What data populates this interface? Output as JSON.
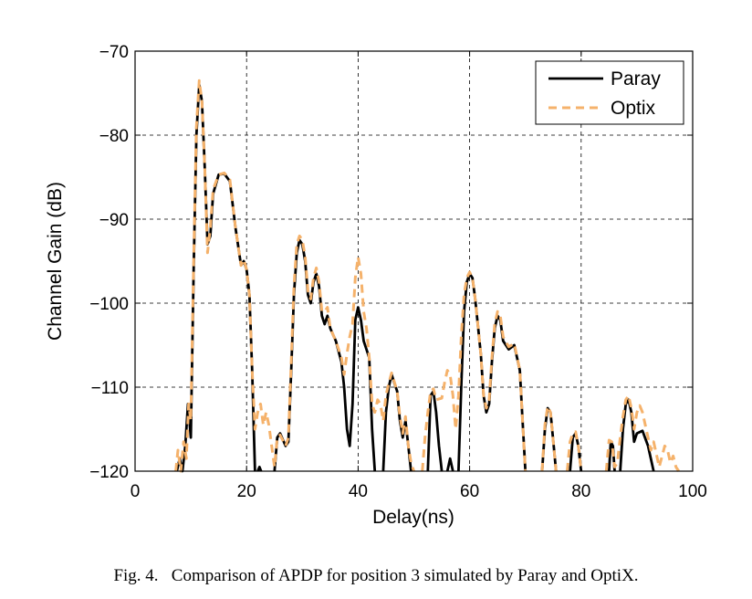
{
  "chart_data": {
    "type": "line",
    "xlabel": "Delay(ns)",
    "ylabel": "Channel Gain (dB)",
    "xlim": [
      0,
      100
    ],
    "ylim": [
      -120,
      -70
    ],
    "xticks": [
      0,
      20,
      40,
      60,
      80,
      100
    ],
    "yticks": [
      -120,
      -110,
      -100,
      -90,
      -80,
      -70
    ],
    "xtick_labels": [
      "0",
      "20",
      "40",
      "60",
      "80",
      "100"
    ],
    "ytick_labels": [
      "−120",
      "−110",
      "−100",
      "−90",
      "−80",
      "−70"
    ],
    "grid": true,
    "legend_position": "top-right",
    "series": [
      {
        "name": "Paray",
        "color": "#000000",
        "style": "solid",
        "segments": [
          [
            [
              7.5,
              -120
            ],
            [
              8,
              -118.5
            ],
            [
              8.5,
              -120
            ],
            [
              9,
              -117
            ],
            [
              9.5,
              -112
            ],
            [
              10,
              -116
            ],
            [
              10.5,
              -96
            ],
            [
              11,
              -80
            ],
            [
              11.5,
              -74
            ],
            [
              12,
              -76
            ],
            [
              12.5,
              -84
            ],
            [
              13,
              -93
            ],
            [
              13.5,
              -92
            ],
            [
              14,
              -87
            ],
            [
              15,
              -84.7
            ],
            [
              16,
              -84.6
            ],
            [
              17,
              -85.5
            ],
            [
              18,
              -91
            ],
            [
              19,
              -95.5
            ],
            [
              19.5,
              -95
            ],
            [
              20,
              -96
            ],
            [
              20.5,
              -99
            ],
            [
              21,
              -108
            ],
            [
              21.5,
              -120
            ]
          ],
          [
            [
              22,
              -120
            ],
            [
              22.3,
              -119.5
            ],
            [
              22.6,
              -120
            ]
          ],
          [
            [
              25,
              -120
            ],
            [
              25.5,
              -116
            ],
            [
              26,
              -115.5
            ],
            [
              27,
              -117
            ],
            [
              27.5,
              -116.5
            ],
            [
              28,
              -108
            ],
            [
              28.5,
              -99
            ],
            [
              29,
              -94
            ],
            [
              29.5,
              -92.5
            ],
            [
              30,
              -93
            ],
            [
              30.5,
              -95
            ],
            [
              31,
              -99
            ],
            [
              31.5,
              -100
            ],
            [
              32,
              -97.5
            ],
            [
              32.5,
              -96.5
            ],
            [
              33,
              -98
            ],
            [
              33.5,
              -101.5
            ],
            [
              34,
              -102.5
            ],
            [
              34.5,
              -101.5
            ],
            [
              35,
              -103
            ],
            [
              36,
              -104.5
            ],
            [
              37,
              -107
            ],
            [
              37.5,
              -110
            ],
            [
              38,
              -115
            ],
            [
              38.5,
              -117
            ],
            [
              39,
              -112
            ],
            [
              39.5,
              -102
            ],
            [
              40,
              -100.5
            ],
            [
              40.5,
              -102
            ],
            [
              41,
              -104.5
            ],
            [
              42,
              -106.5
            ],
            [
              42.5,
              -115
            ],
            [
              43,
              -120
            ]
          ],
          [
            [
              44.5,
              -120
            ],
            [
              45,
              -113
            ],
            [
              45.5,
              -110
            ],
            [
              46,
              -108.5
            ],
            [
              47,
              -110.5
            ],
            [
              47.5,
              -114
            ],
            [
              48,
              -116
            ],
            [
              48.5,
              -114
            ],
            [
              49,
              -117
            ],
            [
              49.5,
              -120
            ]
          ],
          [
            [
              52.5,
              -120
            ],
            [
              53,
              -111
            ],
            [
              53.5,
              -110.5
            ],
            [
              54,
              -113
            ],
            [
              54.5,
              -117
            ],
            [
              55,
              -120
            ]
          ],
          [
            [
              56,
              -120
            ],
            [
              56.5,
              -118.5
            ],
            [
              57,
              -120
            ]
          ],
          [
            [
              58,
              -120
            ],
            [
              58.5,
              -110
            ],
            [
              59,
              -101
            ],
            [
              59.5,
              -97.5
            ],
            [
              60,
              -96.5
            ],
            [
              60.5,
              -97
            ],
            [
              61,
              -99.5
            ],
            [
              62,
              -106
            ],
            [
              62.5,
              -111
            ],
            [
              63,
              -113
            ],
            [
              63.5,
              -112
            ],
            [
              64,
              -107
            ],
            [
              64.5,
              -103
            ],
            [
              65,
              -101.5
            ],
            [
              65.5,
              -102
            ],
            [
              66,
              -104.5
            ],
            [
              67,
              -105.5
            ],
            [
              68,
              -105
            ],
            [
              69,
              -108
            ],
            [
              69.5,
              -114
            ],
            [
              70,
              -120
            ]
          ],
          [
            [
              73,
              -120
            ],
            [
              73.5,
              -115
            ],
            [
              74,
              -112.5
            ],
            [
              74.5,
              -113
            ],
            [
              75,
              -116.5
            ],
            [
              75.5,
              -120
            ]
          ],
          [
            [
              78,
              -120
            ],
            [
              78.5,
              -116
            ],
            [
              79,
              -115.5
            ],
            [
              79.5,
              -117
            ],
            [
              80,
              -120
            ]
          ],
          [
            [
              85,
              -120
            ],
            [
              85.3,
              -116.5
            ],
            [
              85.7,
              -117
            ],
            [
              86,
              -120
            ]
          ],
          [
            [
              87,
              -120
            ],
            [
              87.5,
              -115
            ],
            [
              88,
              -112
            ],
            [
              88.5,
              -111.5
            ],
            [
              89,
              -113
            ],
            [
              89.5,
              -116.5
            ],
            [
              90,
              -115.5
            ],
            [
              91,
              -115.2
            ],
            [
              92,
              -117
            ],
            [
              93,
              -120
            ]
          ]
        ]
      },
      {
        "name": "Optix",
        "color": "#f5b26b",
        "style": "dashed",
        "segments": [
          [
            [
              7.3,
              -120
            ],
            [
              7.7,
              -117.5
            ],
            [
              8.2,
              -120
            ],
            [
              8.7,
              -116.5
            ],
            [
              9.2,
              -118.5
            ],
            [
              9.6,
              -112
            ],
            [
              10,
              -114
            ],
            [
              10.5,
              -95
            ],
            [
              11,
              -79
            ],
            [
              11.5,
              -73.5
            ],
            [
              12,
              -76
            ],
            [
              12.5,
              -84
            ],
            [
              13,
              -94
            ],
            [
              13.5,
              -91
            ],
            [
              14,
              -86.5
            ],
            [
              15,
              -84.7
            ],
            [
              16,
              -84.5
            ],
            [
              17,
              -85.3
            ],
            [
              18,
              -91
            ],
            [
              19,
              -95.5
            ],
            [
              19.5,
              -94.8
            ],
            [
              20,
              -96
            ],
            [
              20.5,
              -99
            ],
            [
              21,
              -108
            ],
            [
              21.5,
              -115
            ],
            [
              22,
              -113
            ],
            [
              22.5,
              -112
            ],
            [
              23,
              -114.5
            ],
            [
              23.5,
              -113
            ],
            [
              24,
              -114.5
            ],
            [
              24.5,
              -117
            ],
            [
              25,
              -119.5
            ],
            [
              25.5,
              -116
            ],
            [
              26,
              -115.7
            ],
            [
              27,
              -117
            ],
            [
              27.5,
              -116
            ],
            [
              28,
              -107
            ],
            [
              28.5,
              -98
            ],
            [
              29,
              -93
            ],
            [
              29.5,
              -92
            ],
            [
              30,
              -92.5
            ],
            [
              30.5,
              -94.5
            ],
            [
              31,
              -98.5
            ],
            [
              31.5,
              -99.5
            ],
            [
              32,
              -97
            ],
            [
              32.5,
              -95.8
            ],
            [
              33,
              -97.5
            ],
            [
              33.5,
              -101
            ],
            [
              34,
              -101
            ],
            [
              34.5,
              -100.5
            ],
            [
              35,
              -103
            ],
            [
              36,
              -104.5
            ],
            [
              37,
              -106.5
            ],
            [
              37.5,
              -108.5
            ],
            [
              38,
              -106
            ],
            [
              38.5,
              -104
            ],
            [
              39,
              -102.5
            ],
            [
              39.5,
              -97
            ],
            [
              40,
              -94.5
            ],
            [
              40.5,
              -96.5
            ],
            [
              41,
              -101
            ],
            [
              41.5,
              -103
            ],
            [
              42,
              -106.5
            ],
            [
              42.5,
              -112
            ],
            [
              43,
              -113
            ],
            [
              43.5,
              -111.5
            ],
            [
              44,
              -112
            ],
            [
              44.5,
              -114
            ],
            [
              45,
              -111
            ],
            [
              45.5,
              -109.5
            ],
            [
              46,
              -108.3
            ],
            [
              47,
              -110.5
            ],
            [
              47.5,
              -113.5
            ],
            [
              48,
              -115.5
            ],
            [
              48.5,
              -113.5
            ],
            [
              49,
              -117
            ],
            [
              49.5,
              -119
            ],
            [
              50,
              -120
            ]
          ],
          [
            [
              51.5,
              -120
            ],
            [
              52,
              -116
            ],
            [
              52.5,
              -113
            ],
            [
              53,
              -110.5
            ],
            [
              53.5,
              -110.2
            ],
            [
              54,
              -111.5
            ],
            [
              55,
              -111.3
            ],
            [
              55.5,
              -109.5
            ],
            [
              56,
              -108
            ],
            [
              56.5,
              -108.5
            ],
            [
              57,
              -111
            ],
            [
              57.5,
              -115
            ],
            [
              58,
              -111
            ],
            [
              58.5,
              -104
            ],
            [
              59,
              -99
            ],
            [
              59.5,
              -97
            ],
            [
              60,
              -96.3
            ],
            [
              60.5,
              -97
            ],
            [
              61,
              -99.5
            ],
            [
              62,
              -106
            ],
            [
              62.5,
              -111
            ],
            [
              63,
              -112.5
            ],
            [
              63.5,
              -111.5
            ],
            [
              64,
              -106.5
            ],
            [
              64.5,
              -102.5
            ],
            [
              65,
              -101
            ],
            [
              65.5,
              -101.5
            ],
            [
              66,
              -104
            ],
            [
              67,
              -105.2
            ],
            [
              68,
              -104.8
            ],
            [
              69,
              -108
            ],
            [
              69.5,
              -114
            ],
            [
              70,
              -120
            ]
          ],
          [
            [
              73,
              -120
            ],
            [
              73.5,
              -114.5
            ],
            [
              74,
              -112.3
            ],
            [
              74.5,
              -113
            ],
            [
              75,
              -116.5
            ],
            [
              75.5,
              -120
            ]
          ],
          [
            [
              77.5,
              -120
            ],
            [
              78,
              -116.5
            ],
            [
              78.5,
              -115.5
            ],
            [
              79,
              -115.3
            ],
            [
              79.5,
              -117
            ],
            [
              80,
              -120
            ]
          ],
          [
            [
              84.5,
              -120
            ],
            [
              85,
              -116.3
            ],
            [
              85.5,
              -116.5
            ],
            [
              86,
              -119.5
            ],
            [
              86.5,
              -119
            ],
            [
              87,
              -116
            ],
            [
              87.5,
              -113.5
            ],
            [
              88,
              -111.5
            ],
            [
              88.5,
              -111
            ],
            [
              89,
              -112.5
            ],
            [
              89.5,
              -115
            ],
            [
              90,
              -113
            ],
            [
              90.5,
              -112.2
            ],
            [
              91,
              -113
            ],
            [
              92,
              -116
            ],
            [
              92.5,
              -117.5
            ],
            [
              93,
              -116.5
            ],
            [
              93.5,
              -118
            ],
            [
              94,
              -119.5
            ],
            [
              95,
              -117
            ],
            [
              95.5,
              -117.5
            ],
            [
              96,
              -119
            ],
            [
              96.5,
              -118.2
            ],
            [
              97,
              -119.5
            ],
            [
              97.5,
              -120
            ]
          ]
        ]
      }
    ]
  },
  "caption": "Fig. 4.   Comparison of APDP for position 3 simulated by Paray and OptiX."
}
